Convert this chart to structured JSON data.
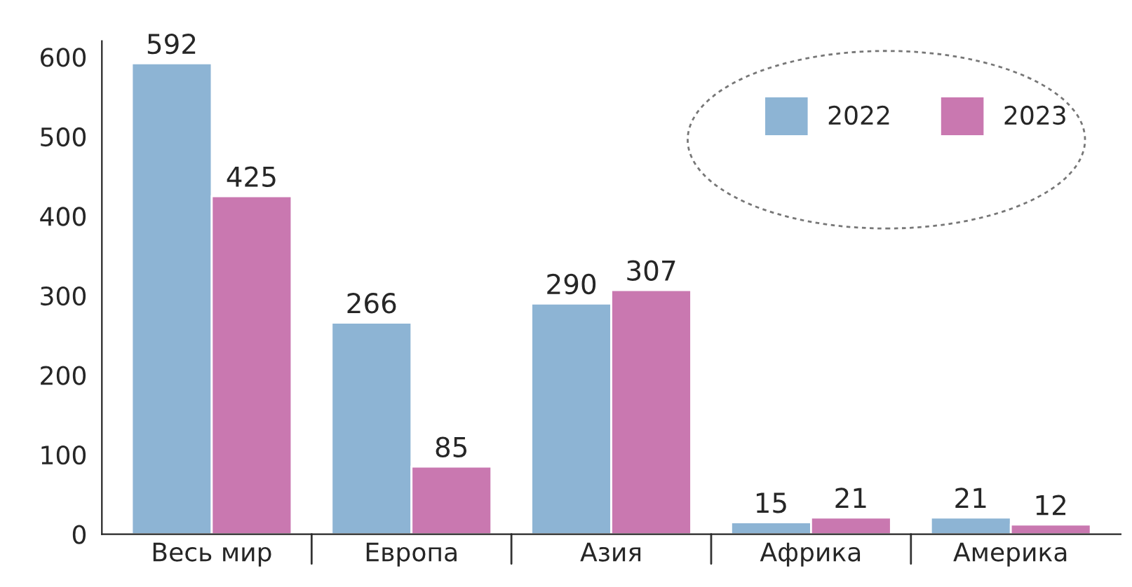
{
  "chart_data": {
    "type": "bar",
    "categories": [
      "Весь мир",
      "Европа",
      "Азия",
      "Африка",
      "Америка"
    ],
    "series": [
      {
        "name": "2022",
        "color": "#8db4d4",
        "values": [
          592,
          266,
          290,
          15,
          21
        ]
      },
      {
        "name": "2023",
        "color": "#c978b0",
        "values": [
          425,
          85,
          307,
          21,
          12
        ]
      }
    ],
    "ylim": [
      0,
      620
    ],
    "yticks": [
      0,
      100,
      200,
      300,
      400,
      500,
      600
    ],
    "data_labels": true,
    "legend": "top right",
    "grid": false
  }
}
